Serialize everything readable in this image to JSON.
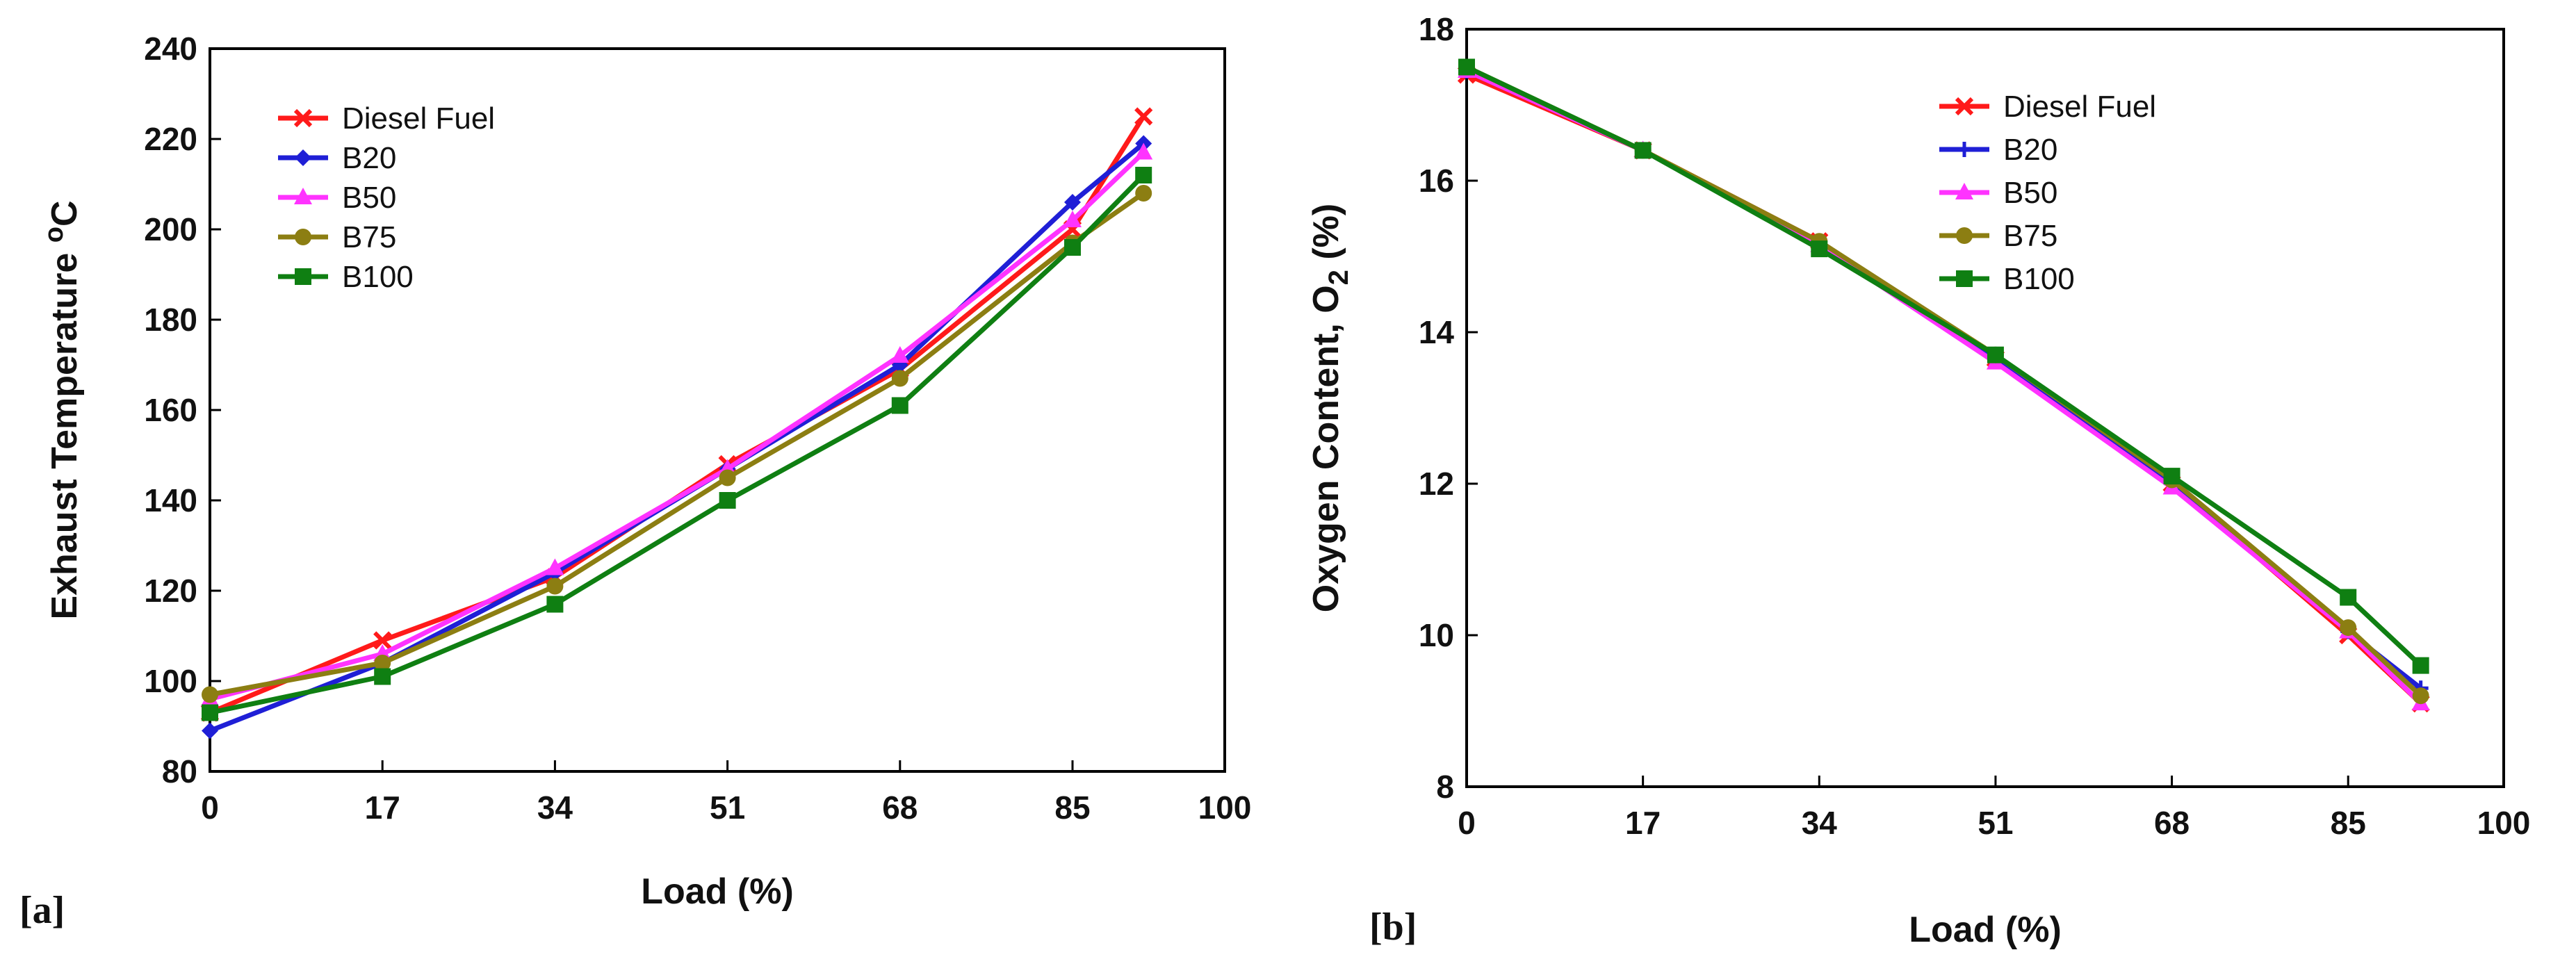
{
  "figure": {
    "panel_labels": [
      "[a]",
      "[b]"
    ]
  },
  "chart_data": [
    {
      "type": "line",
      "panel": "[a]",
      "title": "",
      "xlabel": "Load (%)",
      "ylabel": "Exhaust Temperature ",
      "ylabel_sup": "o",
      "ylabel_tail": "C",
      "x": [
        0,
        17,
        34,
        51,
        68,
        85,
        92
      ],
      "xlim": [
        0,
        100
      ],
      "xticks": [
        0,
        17,
        34,
        51,
        68,
        85,
        100
      ],
      "ylim": [
        80,
        240
      ],
      "yticks": [
        80,
        100,
        120,
        140,
        160,
        180,
        200,
        220,
        240
      ],
      "grid": false,
      "legend_position": "top-left",
      "series": [
        {
          "name": "Diesel Fuel",
          "color": "#ff1a1a",
          "marker": "x",
          "values": [
            93,
            109,
            123,
            148,
            169,
            200,
            225
          ]
        },
        {
          "name": "B20",
          "color": "#1f1fd6",
          "marker": "diamond",
          "values": [
            89,
            104,
            124,
            147,
            170,
            206,
            219
          ]
        },
        {
          "name": "B50",
          "color": "#ff33ff",
          "marker": "triangle",
          "values": [
            96,
            106,
            125,
            147,
            172,
            202,
            217
          ]
        },
        {
          "name": "B75",
          "color": "#8c7e12",
          "marker": "circle",
          "values": [
            97,
            104,
            121,
            145,
            167,
            197,
            208
          ]
        },
        {
          "name": "B100",
          "color": "#0f7f12",
          "marker": "square",
          "values": [
            93,
            101,
            117,
            140,
            161,
            196,
            212
          ]
        }
      ]
    },
    {
      "type": "line",
      "panel": "[b]",
      "title": "",
      "xlabel": "Load (%)",
      "ylabel": "Oxygen Content, O",
      "ylabel_sub": "2",
      "ylabel_tail": " (%)",
      "x": [
        0,
        17,
        34,
        51,
        68,
        85,
        92
      ],
      "xlim": [
        0,
        100
      ],
      "xticks": [
        0,
        17,
        34,
        51,
        68,
        85,
        100
      ],
      "ylim": [
        8,
        18
      ],
      "yticks": [
        8,
        10,
        12,
        14,
        16,
        18
      ],
      "grid": false,
      "legend_position": "top-right",
      "series": [
        {
          "name": "Diesel Fuel",
          "color": "#ff1a1a",
          "marker": "x",
          "values": [
            17.4,
            16.4,
            15.2,
            13.65,
            12.0,
            10.0,
            9.1
          ]
        },
        {
          "name": "B20",
          "color": "#1f1fd6",
          "marker": "plus",
          "values": [
            17.45,
            16.4,
            15.15,
            13.65,
            12.0,
            10.05,
            9.3
          ]
        },
        {
          "name": "B50",
          "color": "#ff33ff",
          "marker": "triangle",
          "values": [
            17.45,
            16.4,
            15.15,
            13.6,
            11.95,
            10.05,
            9.1
          ]
        },
        {
          "name": "B75",
          "color": "#8c7e12",
          "marker": "circle",
          "values": [
            17.5,
            16.4,
            15.2,
            13.7,
            12.05,
            10.1,
            9.2
          ]
        },
        {
          "name": "B100",
          "color": "#0f7f12",
          "marker": "square",
          "values": [
            17.5,
            16.4,
            15.1,
            13.7,
            12.1,
            10.5,
            9.6
          ]
        }
      ]
    }
  ]
}
